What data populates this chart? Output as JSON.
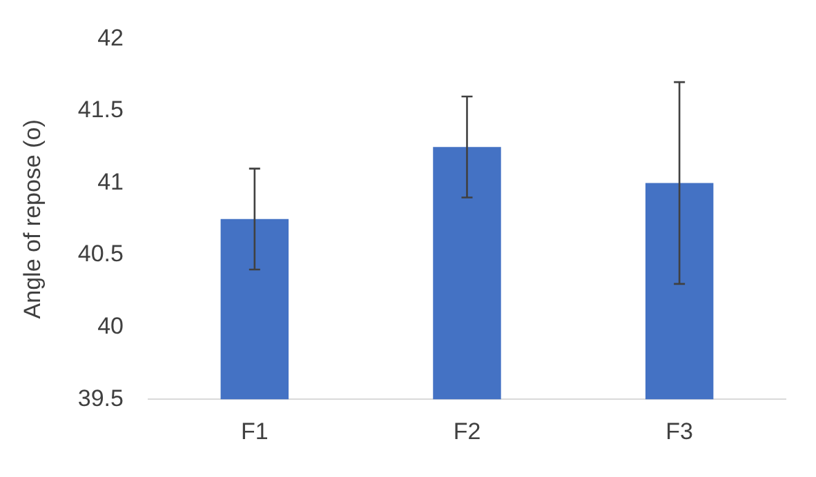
{
  "chart_data": {
    "type": "bar",
    "ylabel": "Angle of repose (o)",
    "categories": [
      "F1",
      "F2",
      "F3"
    ],
    "values": [
      40.75,
      41.25,
      41.0
    ],
    "errors": [
      0.35,
      0.35,
      0.7
    ],
    "color": "#4472c4",
    "ylim": [
      39.5,
      42
    ],
    "yticks": [
      39.5,
      40,
      40.5,
      41,
      41.5,
      42
    ],
    "grid": false,
    "legend": false
  }
}
